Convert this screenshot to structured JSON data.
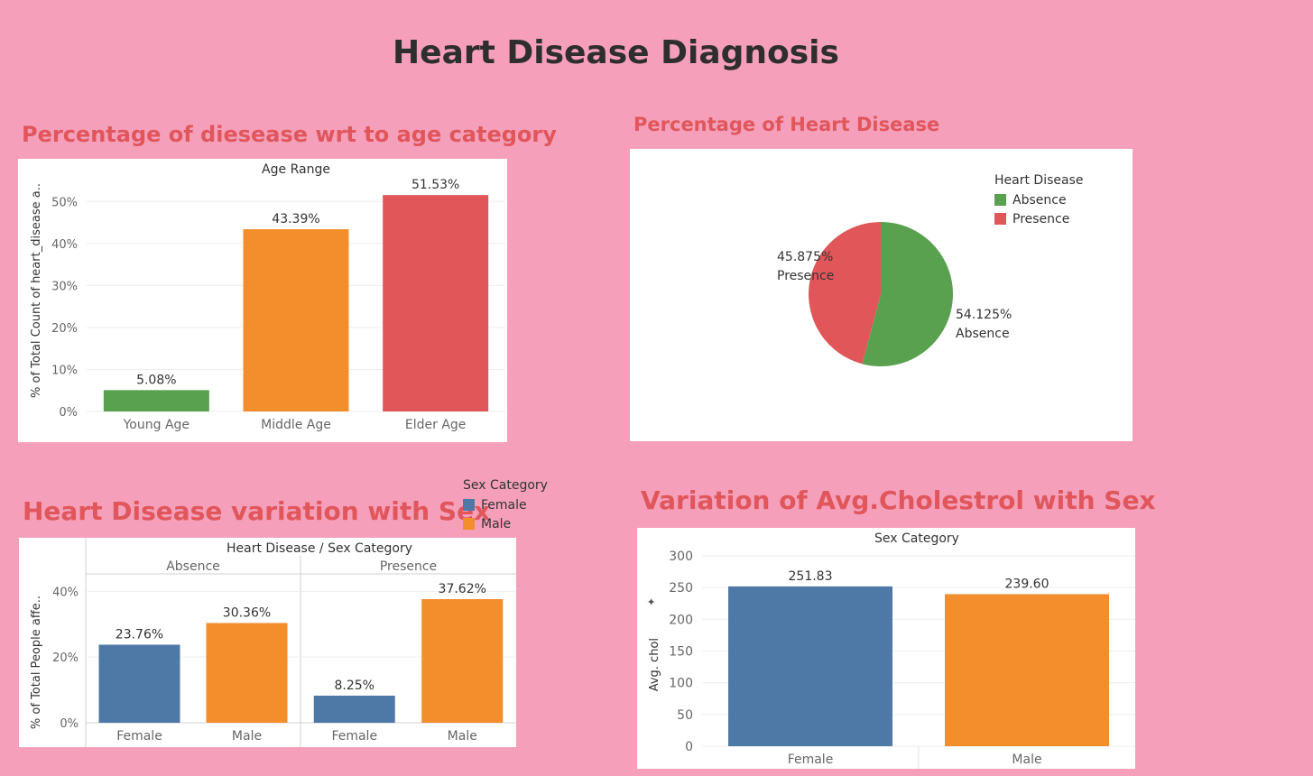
{
  "dashboard": {
    "title": "Heart Disease Diagnosis"
  },
  "colors": {
    "background": "#f59fba",
    "title_red": "#e0565b",
    "green": "#59a14f",
    "orange": "#f28e2b",
    "red": "#e15759",
    "blue": "#4e79a7"
  },
  "sections": {
    "age": "Percentage of diesease wrt to age category",
    "pie": "Percentage of Heart Disease",
    "sex": "Heart Disease variation with Sex",
    "chol": "Variation of Avg.Cholestrol  with Sex"
  },
  "legends": {
    "heart_disease": {
      "title": "Heart Disease",
      "items": [
        "Absence",
        "Presence"
      ]
    },
    "sex_category": {
      "title": "Sex Category",
      "items": [
        "Female",
        "Male"
      ]
    }
  },
  "chart_data": [
    {
      "type": "bar",
      "header": "Age Range",
      "ylabel": "% of Total Count of heart_disease a..",
      "categories": [
        "Young Age",
        "Middle Age",
        "Elder Age"
      ],
      "values": [
        5.08,
        43.39,
        51.53
      ],
      "labels": [
        "5.08%",
        "43.39%",
        "51.53%"
      ],
      "colors": [
        "#59a14f",
        "#f28e2b",
        "#e15759"
      ],
      "yticks": [
        "0%",
        "10%",
        "20%",
        "30%",
        "40%",
        "50%"
      ],
      "ylim": [
        0,
        55
      ]
    },
    {
      "type": "pie",
      "slices": [
        {
          "name": "Absence",
          "value": 54.125,
          "label": "54.125%",
          "color": "#59a14f"
        },
        {
          "name": "Presence",
          "value": 45.875,
          "label": "45.875%",
          "color": "#e15759"
        }
      ]
    },
    {
      "type": "bar",
      "header": "Heart Disease  /  Sex Category",
      "ylabel": "% of Total People affe..",
      "groups": [
        {
          "name": "Absence",
          "categories": [
            "Female",
            "Male"
          ],
          "values": [
            23.76,
            30.36
          ],
          "labels": [
            "23.76%",
            "30.36%"
          ]
        },
        {
          "name": "Presence",
          "categories": [
            "Female",
            "Male"
          ],
          "values": [
            8.25,
            37.62
          ],
          "labels": [
            "8.25%",
            "37.62%"
          ]
        }
      ],
      "colors": [
        "#4e79a7",
        "#f28e2b"
      ],
      "yticks": [
        "0%",
        "20%",
        "40%"
      ],
      "ylim": [
        0,
        45
      ]
    },
    {
      "type": "bar",
      "header": "Sex Category",
      "ylabel": "Avg. chol",
      "categories": [
        "Female",
        "Male"
      ],
      "values": [
        251.83,
        239.6
      ],
      "labels": [
        "251.83",
        "239.60"
      ],
      "colors": [
        "#4e79a7",
        "#f28e2b"
      ],
      "yticks": [
        "0",
        "50",
        "100",
        "150",
        "200",
        "250",
        "300"
      ],
      "ylim": [
        0,
        300
      ]
    }
  ]
}
